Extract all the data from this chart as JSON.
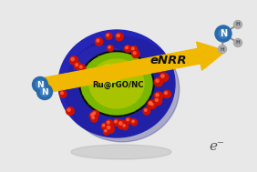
{
  "bg_color": "#ffffff",
  "cloud_color": "#dcdcdc",
  "cloud_color2": "#e8e8e8",
  "torus_blue": "#2525b8",
  "torus_blue_dark": "#1a1a80",
  "torus_blue_light": "#3535cc",
  "green_layer": "#7ab800",
  "green_dark": "#1a2a00",
  "green_light": "#aacc00",
  "green_highlight": "#ccee00",
  "dot_color": "#cc1100",
  "dot_highlight": "#ff3300",
  "arrow_fill": "#f0b800",
  "arrow_edge": "#c08800",
  "arrow_text": "eNRR",
  "arrow_text_color": "#111111",
  "label_text": "Ru@rGO/NC",
  "label_color": "#111111",
  "n2_color": "#2a6aaa",
  "n2_dark": "#1a5090",
  "nh3_n_color": "#2a6aaa",
  "nh3_h_color": "#aaaaaa",
  "nh3_bond_color": "#888888",
  "electron_text": "e⁻",
  "electron_color": "#555555",
  "shadow_color": "#aaaaaa",
  "figsize": [
    2.82,
    1.89
  ],
  "dpi": 100
}
